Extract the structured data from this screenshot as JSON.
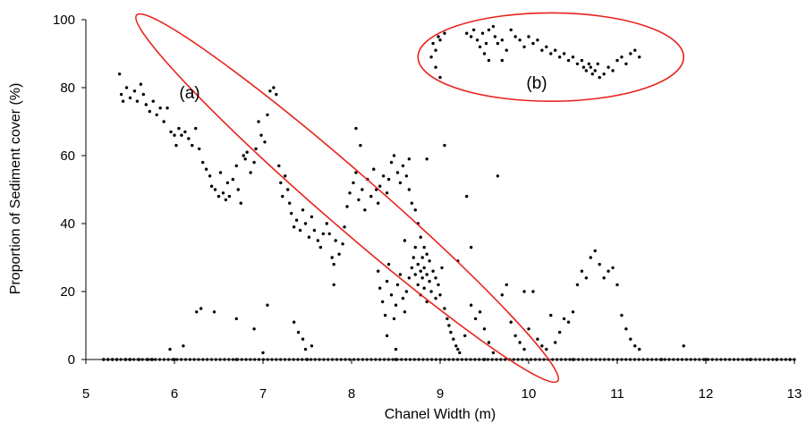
{
  "chart_data": {
    "type": "scatter",
    "xlabel": "Chanel Width (m)",
    "ylabel": "Proportion of Sediment cover (%)",
    "xlim": [
      5,
      13
    ],
    "ylim": [
      0,
      100
    ],
    "x_ticks": [
      5,
      6,
      7,
      8,
      9,
      10,
      11,
      12,
      13
    ],
    "y_ticks": [
      0,
      20,
      40,
      60,
      80,
      100
    ],
    "grid": false,
    "legend": "none",
    "marker_color": "#000000",
    "annotation_color": "#e8221b",
    "annotations": [
      {
        "label": "(a)",
        "shape": "ellipse",
        "x": 7.95,
        "y": 47.5,
        "rx": 3.15,
        "ry": 8.0,
        "angle_deg": 41
      },
      {
        "label": "(b)",
        "shape": "ellipse",
        "x": 10.25,
        "y": 89.0,
        "rx": 1.5,
        "ry": 13.0,
        "angle_deg": 0
      }
    ],
    "series": [
      {
        "points": [
          [
            5.38,
            84
          ],
          [
            5.4,
            78
          ],
          [
            5.42,
            76
          ],
          [
            5.46,
            80
          ],
          [
            5.5,
            77
          ],
          [
            5.55,
            79
          ],
          [
            5.58,
            76
          ],
          [
            5.62,
            81
          ],
          [
            5.65,
            78
          ],
          [
            5.68,
            75
          ],
          [
            5.72,
            73
          ],
          [
            5.76,
            76
          ],
          [
            5.8,
            72
          ],
          [
            5.84,
            74
          ],
          [
            5.88,
            70
          ],
          [
            5.92,
            74
          ],
          [
            5.96,
            67
          ],
          [
            6.0,
            66
          ],
          [
            6.02,
            63
          ],
          [
            6.05,
            68
          ],
          [
            6.08,
            66
          ],
          [
            6.12,
            67
          ],
          [
            6.16,
            65
          ],
          [
            6.2,
            63
          ],
          [
            6.24,
            68
          ],
          [
            6.28,
            62
          ],
          [
            6.32,
            58
          ],
          [
            6.36,
            56
          ],
          [
            6.4,
            54
          ],
          [
            6.42,
            51
          ],
          [
            6.46,
            50
          ],
          [
            6.5,
            48
          ],
          [
            6.52,
            55
          ],
          [
            6.55,
            49
          ],
          [
            6.58,
            47
          ],
          [
            6.6,
            52
          ],
          [
            6.62,
            48
          ],
          [
            6.66,
            53
          ],
          [
            6.7,
            57
          ],
          [
            6.72,
            50
          ],
          [
            6.75,
            46
          ],
          [
            6.78,
            60
          ],
          [
            6.8,
            59
          ],
          [
            6.82,
            61
          ],
          [
            6.86,
            55
          ],
          [
            6.9,
            58
          ],
          [
            6.92,
            62
          ],
          [
            6.95,
            70
          ],
          [
            6.98,
            66
          ],
          [
            7.02,
            64
          ],
          [
            7.05,
            72
          ],
          [
            7.08,
            79
          ],
          [
            7.12,
            80
          ],
          [
            7.15,
            78
          ],
          [
            7.18,
            57
          ],
          [
            7.2,
            52
          ],
          [
            7.22,
            48
          ],
          [
            7.25,
            54
          ],
          [
            7.28,
            50
          ],
          [
            7.3,
            46
          ],
          [
            7.32,
            43
          ],
          [
            7.35,
            39
          ],
          [
            7.38,
            41
          ],
          [
            7.42,
            38
          ],
          [
            7.45,
            44
          ],
          [
            7.48,
            40
          ],
          [
            7.52,
            36
          ],
          [
            7.55,
            42
          ],
          [
            7.58,
            38
          ],
          [
            7.62,
            35
          ],
          [
            7.65,
            33
          ],
          [
            7.68,
            37
          ],
          [
            7.72,
            40
          ],
          [
            7.75,
            37
          ],
          [
            7.78,
            30
          ],
          [
            7.8,
            28
          ],
          [
            7.82,
            35
          ],
          [
            7.86,
            31
          ],
          [
            7.9,
            34
          ],
          [
            7.92,
            39
          ],
          [
            7.95,
            45
          ],
          [
            7.98,
            49
          ],
          [
            8.02,
            52
          ],
          [
            8.05,
            55
          ],
          [
            8.08,
            47
          ],
          [
            8.12,
            50
          ],
          [
            8.15,
            44
          ],
          [
            8.18,
            53
          ],
          [
            8.22,
            48
          ],
          [
            8.25,
            56
          ],
          [
            8.28,
            50
          ],
          [
            8.3,
            46
          ],
          [
            8.32,
            51
          ],
          [
            8.36,
            54
          ],
          [
            8.4,
            49
          ],
          [
            8.42,
            53
          ],
          [
            8.45,
            58
          ],
          [
            8.48,
            60
          ],
          [
            8.52,
            55
          ],
          [
            8.55,
            52
          ],
          [
            8.58,
            57
          ],
          [
            8.62,
            54
          ],
          [
            8.65,
            50
          ],
          [
            8.68,
            46
          ],
          [
            8.72,
            44
          ],
          [
            8.75,
            40
          ],
          [
            8.78,
            36
          ],
          [
            8.82,
            33
          ],
          [
            8.85,
            31
          ],
          [
            8.3,
            26
          ],
          [
            8.32,
            21
          ],
          [
            8.35,
            17
          ],
          [
            8.38,
            13
          ],
          [
            8.4,
            23
          ],
          [
            8.42,
            28
          ],
          [
            8.45,
            19
          ],
          [
            8.48,
            12
          ],
          [
            8.5,
            16
          ],
          [
            8.52,
            22
          ],
          [
            8.55,
            25
          ],
          [
            8.58,
            18
          ],
          [
            8.6,
            14
          ],
          [
            8.62,
            20
          ],
          [
            8.65,
            24
          ],
          [
            8.68,
            27
          ],
          [
            8.7,
            30
          ],
          [
            8.72,
            33
          ],
          [
            8.72,
            25
          ],
          [
            8.75,
            22
          ],
          [
            8.75,
            28
          ],
          [
            8.78,
            19
          ],
          [
            8.78,
            26
          ],
          [
            8.8,
            24
          ],
          [
            8.8,
            30
          ],
          [
            8.82,
            21
          ],
          [
            8.82,
            27
          ],
          [
            8.85,
            17
          ],
          [
            8.85,
            25
          ],
          [
            8.88,
            23
          ],
          [
            8.88,
            29
          ],
          [
            8.9,
            20
          ],
          [
            8.92,
            26
          ],
          [
            8.95,
            18
          ],
          [
            8.95,
            24
          ],
          [
            8.98,
            22
          ],
          [
            9.0,
            19
          ],
          [
            9.02,
            27
          ],
          [
            9.05,
            15
          ],
          [
            9.08,
            12
          ],
          [
            9.1,
            10
          ],
          [
            9.12,
            8
          ],
          [
            9.15,
            6
          ],
          [
            9.18,
            4
          ],
          [
            9.2,
            3
          ],
          [
            9.22,
            2
          ],
          [
            9.28,
            7
          ],
          [
            9.35,
            16
          ],
          [
            9.4,
            12
          ],
          [
            9.45,
            14
          ],
          [
            9.5,
            9
          ],
          [
            9.55,
            5
          ],
          [
            9.6,
            2
          ],
          [
            9.7,
            19
          ],
          [
            9.75,
            22
          ],
          [
            9.8,
            11
          ],
          [
            9.85,
            7
          ],
          [
            9.9,
            5
          ],
          [
            9.95,
            3
          ],
          [
            10.0,
            9
          ],
          [
            10.05,
            20
          ],
          [
            10.1,
            6
          ],
          [
            10.15,
            4
          ],
          [
            10.2,
            3
          ],
          [
            10.25,
            13
          ],
          [
            10.3,
            5
          ],
          [
            10.35,
            8
          ],
          [
            10.4,
            12
          ],
          [
            10.45,
            11
          ],
          [
            10.5,
            14
          ],
          [
            10.55,
            22
          ],
          [
            10.6,
            26
          ],
          [
            10.65,
            24
          ],
          [
            10.7,
            30
          ],
          [
            10.75,
            32
          ],
          [
            10.8,
            28
          ],
          [
            10.85,
            24
          ],
          [
            10.9,
            26
          ],
          [
            10.95,
            27
          ],
          [
            11.0,
            22
          ],
          [
            11.05,
            13
          ],
          [
            11.1,
            9
          ],
          [
            11.15,
            6
          ],
          [
            11.2,
            4
          ],
          [
            11.25,
            3
          ],
          [
            11.75,
            4
          ],
          [
            6.25,
            14
          ],
          [
            6.3,
            15
          ],
          [
            6.45,
            14
          ],
          [
            6.7,
            12
          ],
          [
            6.9,
            9
          ],
          [
            7.05,
            16
          ],
          [
            7.35,
            11
          ],
          [
            7.4,
            8
          ],
          [
            7.45,
            6
          ],
          [
            7.48,
            3
          ],
          [
            7.55,
            4
          ],
          [
            7.8,
            22
          ],
          [
            8.05,
            68
          ],
          [
            8.1,
            63
          ],
          [
            8.6,
            35
          ],
          [
            8.65,
            59
          ],
          [
            8.85,
            59
          ],
          [
            9.05,
            63
          ],
          [
            9.2,
            29
          ],
          [
            9.35,
            33
          ],
          [
            9.65,
            54
          ],
          [
            9.95,
            20
          ],
          [
            5.95,
            3
          ],
          [
            6.1,
            4
          ],
          [
            7.0,
            2
          ],
          [
            8.4,
            7
          ],
          [
            8.5,
            3
          ],
          [
            9.3,
            48
          ],
          [
            8.9,
            89
          ],
          [
            8.92,
            93
          ],
          [
            8.95,
            91
          ],
          [
            8.98,
            95
          ],
          [
            9.0,
            94
          ],
          [
            9.05,
            96
          ],
          [
            8.95,
            86
          ],
          [
            9.0,
            83
          ],
          [
            9.3,
            96
          ],
          [
            9.35,
            95
          ],
          [
            9.38,
            97
          ],
          [
            9.42,
            94
          ],
          [
            9.45,
            92
          ],
          [
            9.48,
            96
          ],
          [
            9.5,
            90
          ],
          [
            9.52,
            93
          ],
          [
            9.55,
            97
          ],
          [
            9.6,
            98
          ],
          [
            9.62,
            95
          ],
          [
            9.65,
            93
          ],
          [
            9.7,
            94
          ],
          [
            9.75,
            91
          ],
          [
            9.8,
            97
          ],
          [
            9.85,
            95
          ],
          [
            9.9,
            94
          ],
          [
            9.95,
            92
          ],
          [
            10.0,
            95
          ],
          [
            10.05,
            93
          ],
          [
            10.1,
            94
          ],
          [
            10.15,
            91
          ],
          [
            10.2,
            92
          ],
          [
            10.25,
            90
          ],
          [
            10.3,
            91
          ],
          [
            10.35,
            89
          ],
          [
            10.4,
            90
          ],
          [
            10.45,
            88
          ],
          [
            10.5,
            89
          ],
          [
            10.55,
            87
          ],
          [
            10.6,
            88
          ],
          [
            10.62,
            86
          ],
          [
            10.65,
            85
          ],
          [
            10.68,
            87
          ],
          [
            10.7,
            86
          ],
          [
            10.72,
            84
          ],
          [
            10.75,
            85
          ],
          [
            10.78,
            87
          ],
          [
            10.8,
            83
          ],
          [
            10.85,
            84
          ],
          [
            10.9,
            86
          ],
          [
            10.95,
            85
          ],
          [
            11.0,
            88
          ],
          [
            11.05,
            89
          ],
          [
            11.1,
            87
          ],
          [
            11.15,
            90
          ],
          [
            11.2,
            91
          ],
          [
            11.25,
            89
          ],
          [
            9.55,
            88
          ],
          [
            9.7,
            88
          ],
          [
            5.2,
            0
          ],
          [
            5.25,
            0
          ],
          [
            5.3,
            0
          ],
          [
            5.35,
            0
          ],
          [
            5.45,
            0
          ],
          [
            5.5,
            0
          ],
          [
            5.6,
            0
          ],
          [
            5.7,
            0
          ],
          [
            5.75,
            0
          ],
          [
            6.0,
            0
          ],
          [
            6.7,
            0
          ],
          [
            7.5,
            0
          ],
          [
            8.5,
            0
          ],
          [
            9.5,
            0
          ],
          [
            10.5,
            0
          ],
          [
            11.5,
            0
          ],
          [
            12.0,
            0
          ],
          [
            12.5,
            0
          ],
          [
            12.8,
            0
          ],
          [
            12.95,
            0
          ]
        ]
      }
    ],
    "baseline_scatter": {
      "y": 0,
      "x_from": 5.2,
      "x_to": 13.0,
      "density_note": ""
    },
    "annotation_labels": [
      "(a)",
      "(b)"
    ]
  }
}
